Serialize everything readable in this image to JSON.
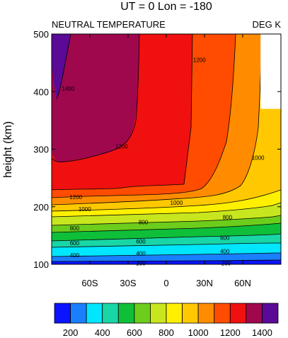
{
  "chart_data": {
    "type": "contour",
    "title": "UT = 0 Lon = -180",
    "left_string": "NEUTRAL TEMPERATURE",
    "right_string": "DEG K",
    "ylabel": "height (km)",
    "xlim": [
      -90,
      90
    ],
    "ylim": [
      100,
      500
    ],
    "x_ticks": [
      {
        "value": -60,
        "label": "60S"
      },
      {
        "value": -30,
        "label": "30S"
      },
      {
        "value": 0,
        "label": "0"
      },
      {
        "value": 30,
        "label": "30N"
      },
      {
        "value": 60,
        "label": "60N"
      }
    ],
    "y_ticks": [
      {
        "value": 100,
        "label": "100"
      },
      {
        "value": 200,
        "label": "200"
      },
      {
        "value": 300,
        "label": "300"
      },
      {
        "value": 400,
        "label": "400"
      },
      {
        "value": 500,
        "label": "500"
      }
    ],
    "colorbar": {
      "labels": [
        "200",
        "400",
        "600",
        "800",
        "1000",
        "1200",
        "1400"
      ],
      "colors": [
        "#0a14ff",
        "#1a7fff",
        "#00e6ff",
        "#19d6a6",
        "#0fbf3a",
        "#6ccd1c",
        "#c8e61e",
        "#fff000",
        "#ffc800",
        "#ff8c00",
        "#ff4c00",
        "#f01010",
        "#a0084e",
        "#5a0a96"
      ]
    },
    "contour_labels": [
      {
        "x": -77,
        "y": 405,
        "text": "1400"
      },
      {
        "x": 26,
        "y": 455,
        "text": "1200"
      },
      {
        "x": -35,
        "y": 305,
        "text": "1200"
      },
      {
        "x": 72,
        "y": 285,
        "text": "1000"
      },
      {
        "x": -71,
        "y": 217,
        "text": "1200"
      },
      {
        "x": 8,
        "y": 207,
        "text": "1000"
      },
      {
        "x": -64,
        "y": 196,
        "text": "1000"
      },
      {
        "x": 48,
        "y": 182,
        "text": "800"
      },
      {
        "x": -18,
        "y": 173,
        "text": "800"
      },
      {
        "x": -72,
        "y": 163,
        "text": "800"
      },
      {
        "x": 46,
        "y": 146,
        "text": "600"
      },
      {
        "x": -20,
        "y": 140,
        "text": "600"
      },
      {
        "x": -72,
        "y": 137,
        "text": "600"
      },
      {
        "x": 46,
        "y": 123,
        "text": "400"
      },
      {
        "x": -20,
        "y": 119,
        "text": "400"
      },
      {
        "x": -72,
        "y": 116,
        "text": "400"
      },
      {
        "x": -20,
        "y": 102,
        "text": "200"
      },
      {
        "x": 47,
        "y": 102,
        "text": "200"
      }
    ],
    "missing_region": {
      "x": [
        74,
        90
      ],
      "y": [
        370,
        500
      ]
    }
  }
}
